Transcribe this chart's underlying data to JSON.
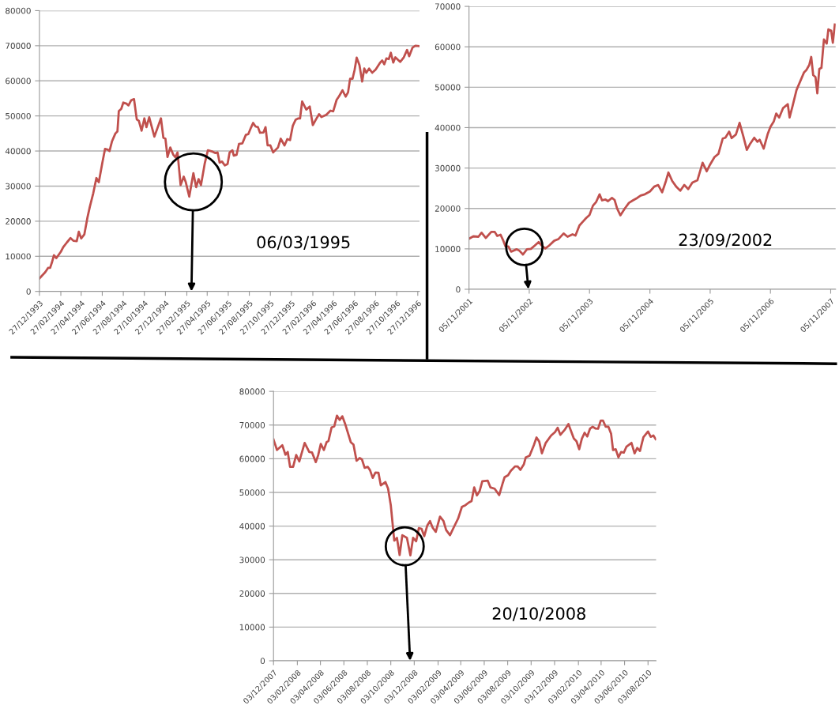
{
  "chart_data": [
    {
      "type": "line",
      "grid": "y",
      "ylim": [
        0,
        80000
      ],
      "yticks": [
        0,
        10000,
        20000,
        30000,
        40000,
        50000,
        60000,
        70000,
        80000
      ],
      "xlim": [
        "1993-12-27",
        "1997-01-01"
      ],
      "xticks": [
        {
          "value": "1993-12-27",
          "label": "27/12/1993"
        },
        {
          "value": "1994-02-27",
          "label": "27/02/1994"
        },
        {
          "value": "1994-04-27",
          "label": "27/04/1994"
        },
        {
          "value": "1994-06-27",
          "label": "27/06/1994"
        },
        {
          "value": "1994-08-27",
          "label": "27/08/1994"
        },
        {
          "value": "1994-10-27",
          "label": "27/10/1994"
        },
        {
          "value": "1994-12-27",
          "label": "27/12/1994"
        },
        {
          "value": "1995-02-27",
          "label": "27/02/1995"
        },
        {
          "value": "1995-04-27",
          "label": "27/04/1995"
        },
        {
          "value": "1995-06-27",
          "label": "27/06/1995"
        },
        {
          "value": "1995-08-27",
          "label": "27/08/1995"
        },
        {
          "value": "1995-10-27",
          "label": "27/10/1995"
        },
        {
          "value": "1995-12-27",
          "label": "27/12/1995"
        },
        {
          "value": "1996-02-27",
          "label": "27/02/1996"
        },
        {
          "value": "1996-04-27",
          "label": "27/04/1996"
        },
        {
          "value": "1996-06-27",
          "label": "27/06/1996"
        },
        {
          "value": "1996-08-27",
          "label": "27/08/1996"
        },
        {
          "value": "1996-10-27",
          "label": "27/10/1996"
        },
        {
          "value": "1996-12-27",
          "label": "27/12/1996"
        }
      ],
      "annotations": [
        "06/03/1995"
      ],
      "x": [
        "1993-12-27",
        "1994-01-13",
        "1994-01-21",
        "1994-01-27",
        "1994-02-01",
        "1994-02-07",
        "1994-02-14",
        "1994-02-27",
        "1994-03-06",
        "1994-03-17",
        "1994-03-27",
        "1994-04-05",
        "1994-04-14",
        "1994-04-20",
        "1994-04-27",
        "1994-05-06",
        "1994-05-15",
        "1994-05-22",
        "1994-06-01",
        "1994-06-10",
        "1994-06-17",
        "1994-06-27",
        "1994-07-05",
        "1994-07-13",
        "1994-07-18",
        "1994-07-25",
        "1994-08-04",
        "1994-08-10",
        "1994-08-14",
        "1994-08-21",
        "1994-08-27",
        "1994-09-05",
        "1994-09-11",
        "1994-09-19",
        "1994-09-27",
        "1994-10-05",
        "1994-10-11",
        "1994-10-19",
        "1994-10-27",
        "1994-11-02",
        "1994-11-10",
        "1994-11-25",
        "1994-12-14",
        "1994-12-21",
        "1994-12-27",
        "1995-01-02",
        "1995-01-10",
        "1995-01-19",
        "1995-01-25",
        "1995-01-31",
        "1995-02-09",
        "1995-02-18",
        "1995-02-24",
        "1995-03-06",
        "1995-03-18",
        "1995-03-26",
        "1995-04-02",
        "1995-04-09",
        "1995-04-20",
        "1995-04-29",
        "1995-05-13",
        "1995-05-21",
        "1995-05-27",
        "1995-06-02",
        "1995-06-09",
        "1995-06-17",
        "1995-06-25",
        "1995-07-01",
        "1995-07-09",
        "1995-07-13",
        "1995-07-21",
        "1995-07-28",
        "1995-08-07",
        "1995-08-17",
        "1995-08-24",
        "1995-09-01",
        "1995-09-07",
        "1995-09-14",
        "1995-09-21",
        "1995-09-27",
        "1995-10-07",
        "1995-10-13",
        "1995-10-19",
        "1995-10-27",
        "1995-11-04",
        "1995-11-18",
        "1995-11-26",
        "1995-12-07",
        "1995-12-15",
        "1995-12-23",
        "1995-12-31",
        "1996-01-08",
        "1996-01-16",
        "1996-01-21",
        "1996-01-27",
        "1996-02-08",
        "1996-02-18",
        "1996-02-27",
        "1996-03-07",
        "1996-03-16",
        "1996-03-23",
        "1996-04-06",
        "1996-04-18",
        "1996-04-26",
        "1996-05-06",
        "1996-05-13",
        "1996-05-23",
        "1996-06-01",
        "1996-06-08",
        "1996-06-14",
        "1996-06-21",
        "1996-06-27",
        "1996-07-03",
        "1996-07-11",
        "1996-07-19",
        "1996-07-25",
        "1996-07-31",
        "1996-08-08",
        "1996-08-17",
        "1996-08-27",
        "1996-09-09",
        "1996-09-15",
        "1996-09-21",
        "1996-09-27",
        "1996-10-04",
        "1996-10-10",
        "1996-10-17",
        "1996-10-23",
        "1996-11-06",
        "1996-11-16",
        "1996-11-26",
        "1996-12-02",
        "1996-12-12",
        "1996-12-20",
        "1996-12-30"
      ],
      "series": [
        {
          "color": "#c0504d",
          "values": [
            3700,
            5500,
            6700,
            6700,
            8200,
            10300,
            9500,
            11300,
            12600,
            14000,
            15200,
            14400,
            14300,
            17000,
            15100,
            16200,
            21000,
            24100,
            28000,
            32300,
            31100,
            36500,
            40600,
            40400,
            40000,
            42700,
            45000,
            45600,
            51400,
            52000,
            53800,
            53500,
            53000,
            54500,
            54800,
            49000,
            48600,
            45800,
            49300,
            46800,
            49600,
            44100,
            49300,
            43800,
            43500,
            38300,
            41000,
            38900,
            38200,
            39600,
            30300,
            32700,
            31100,
            27000,
            33700,
            29700,
            32000,
            30300,
            36500,
            40200,
            39800,
            39400,
            39600,
            36700,
            37000,
            35900,
            36300,
            39600,
            40200,
            38700,
            38900,
            42000,
            42200,
            44600,
            44800,
            46700,
            48000,
            47000,
            46800,
            45200,
            45300,
            46800,
            41600,
            41600,
            39600,
            41000,
            43500,
            41600,
            43400,
            43100,
            47200,
            48900,
            49300,
            49300,
            54100,
            51800,
            52700,
            47400,
            49000,
            50500,
            49700,
            50300,
            51500,
            51300,
            54600,
            55600,
            57300,
            55500,
            56700,
            60600,
            60600,
            63100,
            66600,
            64500,
            59800,
            63500,
            62300,
            63500,
            62300,
            63200,
            65200,
            65800,
            64700,
            66400,
            66200,
            68000,
            65200,
            66700,
            65400,
            66600,
            68800,
            67000,
            69500,
            70000,
            69900
          ]
        }
      ]
    },
    {
      "type": "line",
      "grid": "y",
      "ylim": [
        0,
        70000
      ],
      "yticks": [
        0,
        10000,
        20000,
        30000,
        40000,
        50000,
        60000,
        70000
      ],
      "xlim": [
        "2001-11-05",
        "2007-12-05"
      ],
      "xticks": [
        {
          "value": "2001-11-05",
          "label": "05/11/2001"
        },
        {
          "value": "2002-11-05",
          "label": "05/11/2002"
        },
        {
          "value": "2003-11-05",
          "label": "05/11/2003"
        },
        {
          "value": "2004-11-05",
          "label": "05/11/2004"
        },
        {
          "value": "2005-11-05",
          "label": "05/11/2005"
        },
        {
          "value": "2006-11-05",
          "label": "05/11/2006"
        },
        {
          "value": "2007-11-05",
          "label": "05/11/2007"
        }
      ],
      "annotations": [
        "23/09/2002"
      ],
      "x": [
        "2001-11-05",
        "2001-12-01",
        "2002-01-01",
        "2002-01-20",
        "2002-02-15",
        "2002-03-20",
        "2002-04-10",
        "2002-04-25",
        "2002-05-15",
        "2002-05-30",
        "2002-06-14",
        "2002-07-02",
        "2002-07-18",
        "2002-08-20",
        "2002-09-05",
        "2002-09-28",
        "2002-10-22",
        "2002-11-15",
        "2002-12-08",
        "2003-01-01",
        "2003-01-17",
        "2003-02-10",
        "2003-03-05",
        "2003-04-05",
        "2003-04-30",
        "2003-06-01",
        "2003-06-25",
        "2003-07-25",
        "2003-08-12",
        "2003-09-05",
        "2003-09-25",
        "2003-10-15",
        "2003-11-05",
        "2003-11-26",
        "2003-12-15",
        "2004-01-05",
        "2004-01-20",
        "2004-02-10",
        "2004-02-25",
        "2004-03-20",
        "2004-04-05",
        "2004-04-20",
        "2004-05-10",
        "2004-06-06",
        "2004-07-01",
        "2004-07-25",
        "2004-08-20",
        "2004-09-10",
        "2004-10-05",
        "2004-11-05",
        "2004-12-01",
        "2004-12-25",
        "2005-01-18",
        "2005-02-10",
        "2005-02-25",
        "2005-03-20",
        "2005-04-15",
        "2005-05-08",
        "2005-06-01",
        "2005-06-25",
        "2005-07-20",
        "2005-08-20",
        "2005-09-20",
        "2005-10-15",
        "2005-11-05",
        "2005-12-01",
        "2005-12-25",
        "2006-01-20",
        "2006-02-05",
        "2006-02-28",
        "2006-03-15",
        "2006-04-10",
        "2006-05-02",
        "2006-05-25",
        "2006-06-15",
        "2006-07-05",
        "2006-07-30",
        "2006-08-18",
        "2006-09-01",
        "2006-09-25",
        "2006-10-20",
        "2006-11-05",
        "2006-11-25",
        "2006-12-10",
        "2006-12-28",
        "2007-01-20",
        "2007-02-18",
        "2007-03-01",
        "2007-03-20",
        "2007-04-12",
        "2007-05-05",
        "2007-05-28",
        "2007-06-10",
        "2007-06-28",
        "2007-07-10",
        "2007-07-22",
        "2007-08-05",
        "2007-08-16",
        "2007-08-28",
        "2007-09-10",
        "2007-09-25",
        "2007-10-12",
        "2007-10-22",
        "2007-11-08",
        "2007-11-18",
        "2007-11-30"
      ],
      "series": [
        {
          "color": "#c0504d",
          "values": [
            12500,
            13100,
            13000,
            14000,
            12700,
            14200,
            14200,
            13200,
            13500,
            12200,
            10600,
            10600,
            9300,
            9900,
            9600,
            8600,
            9900,
            10000,
            10800,
            11700,
            10900,
            10100,
            10800,
            12000,
            12400,
            13800,
            13000,
            13600,
            13300,
            15800,
            16700,
            17600,
            18400,
            20700,
            21600,
            23500,
            22000,
            22200,
            21800,
            22600,
            22100,
            20000,
            18300,
            20000,
            21400,
            22000,
            22600,
            23200,
            23500,
            24200,
            25400,
            25800,
            24000,
            26800,
            28900,
            26800,
            25300,
            24400,
            25800,
            24800,
            26400,
            27000,
            31300,
            29200,
            30900,
            32700,
            33500,
            37300,
            37500,
            39000,
            37400,
            38300,
            41200,
            37800,
            34500,
            36000,
            37500,
            36500,
            37000,
            34800,
            38500,
            40200,
            41500,
            43500,
            42500,
            44800,
            45800,
            42500,
            45500,
            49300,
            51500,
            53700,
            54200,
            55500,
            57500,
            53000,
            52500,
            48500,
            54500,
            54800,
            61800,
            60800,
            64300,
            64000,
            61000,
            65500
          ]
        }
      ]
    },
    {
      "type": "line",
      "grid": "y",
      "ylim": [
        0,
        80000
      ],
      "yticks": [
        0,
        10000,
        20000,
        30000,
        40000,
        50000,
        60000,
        70000,
        80000
      ],
      "xlim": [
        "2007-12-03",
        "2010-08-24"
      ],
      "xticks": [
        {
          "value": "2007-12-03",
          "label": "03/12/2007"
        },
        {
          "value": "2008-02-03",
          "label": "03/02/2008"
        },
        {
          "value": "2008-04-03",
          "label": "03/04/2008"
        },
        {
          "value": "2008-06-03",
          "label": "03/06/2008"
        },
        {
          "value": "2008-08-03",
          "label": "03/08/2008"
        },
        {
          "value": "2008-10-03",
          "label": "03/10/2008"
        },
        {
          "value": "2008-12-03",
          "label": "03/12/2008"
        },
        {
          "value": "2009-02-03",
          "label": "03/02/2009"
        },
        {
          "value": "2009-04-03",
          "label": "03/04/2009"
        },
        {
          "value": "2009-06-03",
          "label": "03/06/2009"
        },
        {
          "value": "2009-08-03",
          "label": "03/08/2009"
        },
        {
          "value": "2009-10-03",
          "label": "03/10/2009"
        },
        {
          "value": "2009-12-03",
          "label": "03/12/2009"
        },
        {
          "value": "2010-02-03",
          "label": "03/02/2010"
        },
        {
          "value": "2010-04-03",
          "label": "03/04/2010"
        },
        {
          "value": "2010-06-03",
          "label": "03/06/2010"
        },
        {
          "value": "2010-08-03",
          "label": "03/08/2010"
        }
      ],
      "annotations": [
        "20/10/2008"
      ],
      "x": [
        "2007-12-03",
        "2007-12-12",
        "2007-12-26",
        "2008-01-03",
        "2008-01-09",
        "2008-01-15",
        "2008-01-23",
        "2008-01-31",
        "2008-02-08",
        "2008-02-22",
        "2008-03-05",
        "2008-03-12",
        "2008-03-22",
        "2008-03-28",
        "2008-04-04",
        "2008-04-12",
        "2008-04-19",
        "2008-04-24",
        "2008-05-02",
        "2008-05-09",
        "2008-05-16",
        "2008-05-23",
        "2008-05-30",
        "2008-06-07",
        "2008-06-21",
        "2008-06-28",
        "2008-07-06",
        "2008-07-14",
        "2008-07-20",
        "2008-07-27",
        "2008-08-04",
        "2008-08-10",
        "2008-08-17",
        "2008-08-24",
        "2008-09-01",
        "2008-09-07",
        "2008-09-19",
        "2008-09-26",
        "2008-10-03",
        "2008-10-12",
        "2008-10-19",
        "2008-10-26",
        "2008-11-02",
        "2008-11-14",
        "2008-11-23",
        "2008-11-30",
        "2008-12-08",
        "2008-12-15",
        "2008-12-22",
        "2008-12-29",
        "2009-01-06",
        "2009-01-13",
        "2009-01-20",
        "2009-01-28",
        "2009-02-08",
        "2009-02-17",
        "2009-02-24",
        "2009-03-06",
        "2009-03-17",
        "2009-03-27",
        "2009-04-06",
        "2009-04-15",
        "2009-04-24",
        "2009-05-01",
        "2009-05-08",
        "2009-05-15",
        "2009-05-22",
        "2009-05-29",
        "2009-06-12",
        "2009-06-19",
        "2009-06-30",
        "2009-07-12",
        "2009-07-21",
        "2009-07-26",
        "2009-08-04",
        "2009-08-11",
        "2009-08-22",
        "2009-08-29",
        "2009-09-05",
        "2009-09-14",
        "2009-09-19",
        "2009-09-29",
        "2009-10-10",
        "2009-10-17",
        "2009-10-24",
        "2009-10-31",
        "2009-11-10",
        "2009-11-24",
        "2009-12-04",
        "2009-12-11",
        "2009-12-18",
        "2009-12-30",
        "2010-01-08",
        "2010-01-22",
        "2010-01-29",
        "2010-02-05",
        "2010-02-12",
        "2010-02-19",
        "2010-02-26",
        "2010-03-05",
        "2010-03-12",
        "2010-03-19",
        "2010-03-26",
        "2010-04-02",
        "2010-04-08",
        "2010-04-15",
        "2010-04-22",
        "2010-04-29",
        "2010-05-04",
        "2010-05-11",
        "2010-05-18",
        "2010-05-25",
        "2010-06-01",
        "2010-06-08",
        "2010-06-21",
        "2010-06-29",
        "2010-07-06",
        "2010-07-13",
        "2010-07-22",
        "2010-08-03",
        "2010-08-10",
        "2010-08-17",
        "2010-08-23"
      ],
      "series": [
        {
          "color": "#c0504d",
          "values": [
            65700,
            62600,
            64000,
            61200,
            62000,
            57600,
            57600,
            61100,
            59200,
            64700,
            62000,
            61900,
            59000,
            61000,
            64400,
            62600,
            64900,
            65300,
            69300,
            69600,
            72800,
            71500,
            72600,
            70100,
            64900,
            64200,
            59400,
            60200,
            59800,
            57300,
            57600,
            56600,
            54300,
            55900,
            55800,
            52100,
            53100,
            51100,
            46200,
            35700,
            36500,
            31400,
            37300,
            36500,
            31300,
            36500,
            35500,
            39400,
            39200,
            37000,
            40200,
            41500,
            39500,
            38300,
            42800,
            41500,
            38800,
            37300,
            39900,
            42200,
            45700,
            46200,
            47000,
            47400,
            51500,
            49100,
            50400,
            53300,
            53500,
            51500,
            51100,
            49200,
            52700,
            54500,
            55100,
            56400,
            57700,
            57700,
            56700,
            58300,
            60400,
            60900,
            64000,
            66300,
            65100,
            61600,
            64700,
            66900,
            67900,
            69200,
            67100,
            68700,
            70300,
            66000,
            65200,
            62800,
            66000,
            67700,
            66600,
            68900,
            69500,
            69000,
            68900,
            71300,
            71300,
            69500,
            69500,
            67400,
            62600,
            62800,
            60400,
            62000,
            61800,
            63600,
            64700,
            61600,
            63200,
            62300,
            66400,
            68100,
            66500,
            66900,
            65800
          ]
        }
      ]
    }
  ]
}
